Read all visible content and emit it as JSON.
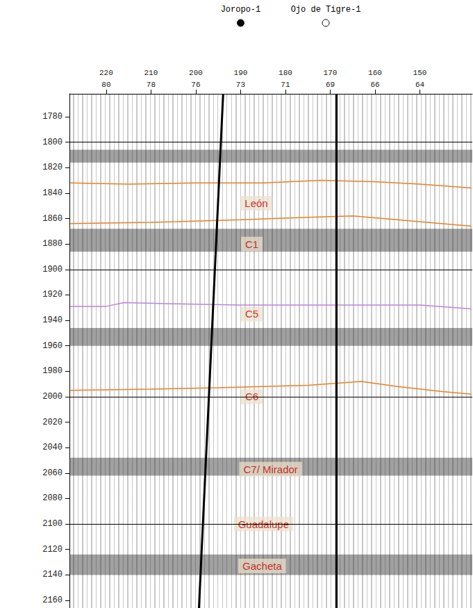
{
  "chart_data": {
    "type": "seismic_section",
    "xlim": [
      228.2,
      138.3
    ],
    "xticks": [
      220,
      210,
      200,
      190,
      180,
      170,
      160,
      150
    ],
    "xticks_secondary": [
      {
        "value": 220,
        "label": "80"
      },
      {
        "value": 210,
        "label": "78"
      },
      {
        "value": 200,
        "label": "76"
      },
      {
        "value": 190,
        "label": "73"
      },
      {
        "value": 180,
        "label": "71"
      },
      {
        "value": 170,
        "label": "69"
      },
      {
        "value": 160,
        "label": "66"
      },
      {
        "value": 150,
        "label": "64"
      }
    ],
    "ylim": [
      1762,
      2166
    ],
    "yticks": [
      1780,
      1800,
      1820,
      1840,
      1860,
      1880,
      1900,
      1920,
      1940,
      1960,
      1980,
      2000,
      2020,
      2040,
      2060,
      2080,
      2100,
      2120,
      2140,
      2160
    ],
    "grid": true,
    "ygrid": [
      1800,
      1900,
      2000,
      2100
    ],
    "wells": [
      {
        "name": "Joropo-1",
        "marker": "filled",
        "surface_trace": 190,
        "track": {
          "trace": [
            193.9,
            199.3
          ],
          "time": [
            1762,
            2166
          ]
        }
      },
      {
        "name": "Ojo de Tigre-1",
        "marker": "open",
        "surface_trace": 171,
        "track": {
          "trace": [
            168.6,
            168.6
          ],
          "time": [
            1762,
            2166
          ]
        }
      }
    ],
    "horizons": [
      {
        "color": "#e8801e",
        "trace": [
          228,
          215,
          200,
          185,
          172,
          160,
          150,
          138.5
        ],
        "time": [
          1832,
          1833,
          1832,
          1832,
          1830,
          1831,
          1833,
          1836
        ]
      },
      {
        "color": "#e8801e",
        "trace": [
          228,
          210,
          190,
          175,
          165,
          155,
          138.5
        ],
        "time": [
          1864,
          1863,
          1861,
          1859,
          1858,
          1861,
          1866
        ]
      },
      {
        "color": "#c080e0",
        "trace": [
          228,
          220,
          216,
          205,
          190,
          170,
          150,
          138.5
        ],
        "time": [
          1929,
          1929,
          1926,
          1927,
          1928,
          1928,
          1928,
          1931
        ]
      },
      {
        "color": "#e8801e",
        "trace": [
          228,
          210,
          195,
          175,
          163,
          155,
          145,
          138.5
        ],
        "time": [
          1995,
          1994,
          1993,
          1991,
          1988,
          1992,
          1996,
          1998
        ]
      }
    ],
    "amplitude_bands": [
      {
        "from": 1806,
        "to": 1816
      },
      {
        "from": 1868,
        "to": 1886
      },
      {
        "from": 1946,
        "to": 1960
      },
      {
        "from": 2048,
        "to": 2062
      },
      {
        "from": 2124,
        "to": 2140
      }
    ],
    "labels": [
      {
        "text": "León",
        "trace": 186.5,
        "time": 1848
      },
      {
        "text": "C1",
        "trace": 187.5,
        "time": 1880
      },
      {
        "text": "C5",
        "trace": 187.5,
        "time": 1935
      },
      {
        "text": "C6",
        "trace": 187.5,
        "time": 2000
      },
      {
        "text": "C7/ Mirador",
        "trace": 183.3,
        "time": 2057
      },
      {
        "text": "Guadalupe",
        "trace": 184.9,
        "time": 2100
      },
      {
        "text": "Gacheta",
        "trace": 185.2,
        "time": 2133
      }
    ]
  }
}
